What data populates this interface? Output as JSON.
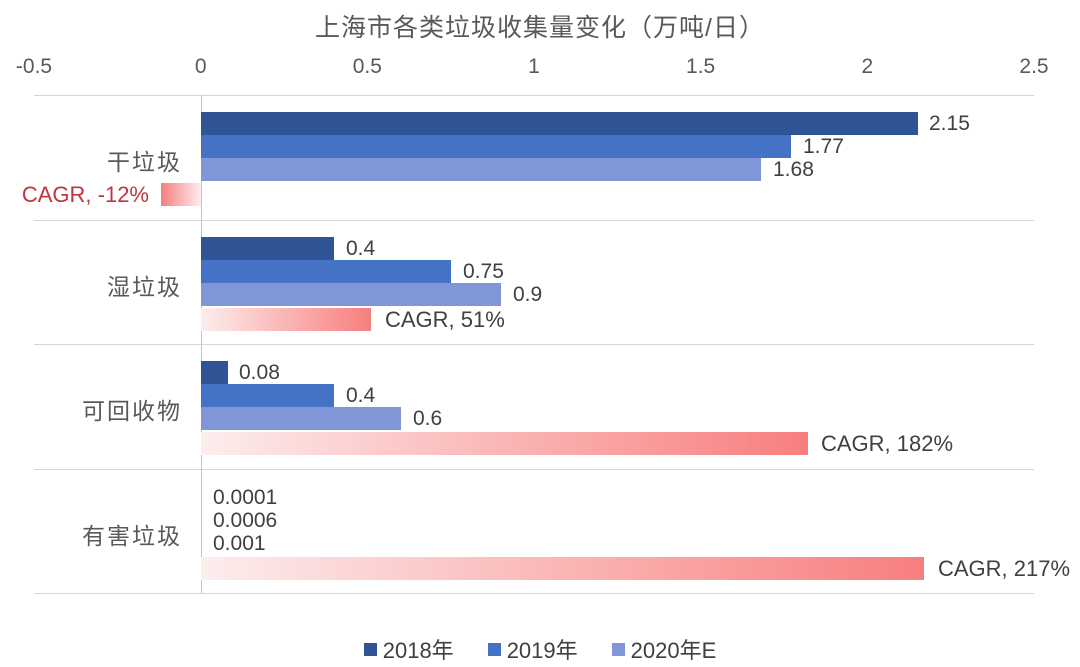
{
  "chart_data": {
    "type": "bar",
    "orientation": "horizontal",
    "title": "上海市各类垃圾收集量变化（万吨/日）",
    "categories": [
      "干垃圾",
      "湿垃圾",
      "可回收物",
      "有害垃圾"
    ],
    "series": [
      {
        "name": "2018年",
        "color": "#2F5597",
        "values": [
          2.15,
          0.4,
          0.08,
          0.0001
        ],
        "labels": [
          "2.15",
          "0.4",
          "0.08",
          "0.0001"
        ]
      },
      {
        "name": "2019年",
        "color": "#4472C4",
        "values": [
          1.77,
          0.75,
          0.4,
          0.0006
        ],
        "labels": [
          "1.77",
          "0.75",
          "0.4",
          "0.0006"
        ]
      },
      {
        "name": "2020年E",
        "color": "#8096D6",
        "values": [
          1.68,
          0.9,
          0.6,
          0.001
        ],
        "labels": [
          "1.68",
          "0.9",
          "0.6",
          "0.001"
        ]
      }
    ],
    "cagr": {
      "values": [
        -0.12,
        0.51,
        1.82,
        2.17
      ],
      "labels": [
        "CAGR, -12%",
        "CAGR, 51%",
        "CAGR, 182%",
        "CAGR, 217%"
      ],
      "bar_color_light": "#FDEDED",
      "bar_color_strong": "#F87E7E",
      "label_color": "#404040",
      "negative_label_color": "#C0343F"
    },
    "x_axis": {
      "min": -0.5,
      "max": 2.5,
      "tick_values": [
        -0.5,
        0,
        0.5,
        1,
        1.5,
        2,
        2.5
      ],
      "tick_labels": [
        "-0.5",
        "0",
        "0.5",
        "1",
        "1.5",
        "2",
        "2.5"
      ]
    },
    "legend": {
      "position": "bottom",
      "items": [
        {
          "label": "2018年",
          "color": "#2F5597"
        },
        {
          "label": "2019年",
          "color": "#4472C4"
        },
        {
          "label": "2020年E",
          "color": "#8096D6"
        }
      ]
    },
    "grid": {
      "row_separators": true,
      "zero_line": true
    }
  }
}
